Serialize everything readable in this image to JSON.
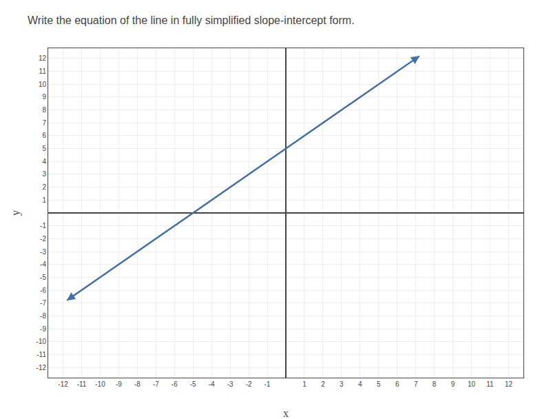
{
  "chart_data": {
    "type": "line",
    "title": "Write the equation of the line in fully simplified slope-intercept form.",
    "xlabel": "x",
    "ylabel": "y",
    "x": [
      -11.8,
      7.2
    ],
    "values": [
      -6.8,
      12.2
    ],
    "color": "#4472a8",
    "xlim": [
      -12.8,
      12.8
    ],
    "ylim": [
      -12.8,
      12.8
    ],
    "xticks": [
      -12,
      -11,
      -10,
      -9,
      -8,
      -7,
      -6,
      -5,
      -4,
      -3,
      -2,
      -1,
      1,
      2,
      3,
      4,
      5,
      6,
      7,
      8,
      9,
      10,
      11,
      12
    ],
    "yticks": [
      -12,
      -11,
      -10,
      -9,
      -8,
      -7,
      -6,
      -5,
      -4,
      -3,
      -2,
      -1,
      1,
      2,
      3,
      4,
      5,
      6,
      7,
      8,
      9,
      10,
      11,
      12
    ],
    "grid": true
  }
}
